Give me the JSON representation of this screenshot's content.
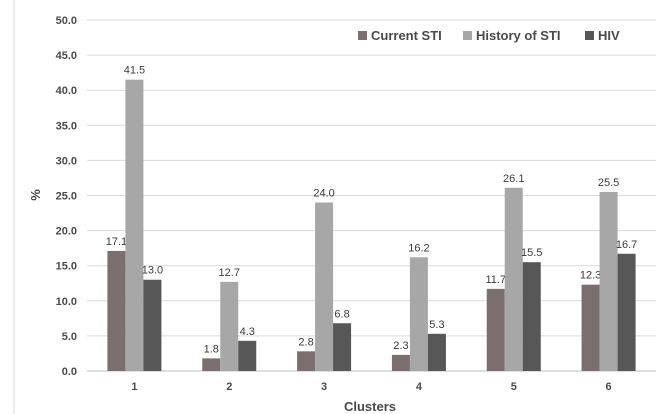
{
  "chart_data": {
    "type": "bar",
    "xlabel": "Clusters",
    "ylabel": "%",
    "ylim": [
      0,
      50
    ],
    "ytick_step": 5,
    "grid": true,
    "legend_position": "top-right",
    "categories": [
      "1",
      "2",
      "3",
      "4",
      "5",
      "6"
    ],
    "series": [
      {
        "name": "Current STI",
        "color": "#7b6e6e",
        "values": [
          17.1,
          1.8,
          2.8,
          2.3,
          11.7,
          12.3
        ]
      },
      {
        "name": "History of STI",
        "color": "#a7a7a7",
        "values": [
          41.5,
          12.7,
          24.0,
          16.2,
          26.1,
          25.5
        ]
      },
      {
        "name": "HIV",
        "color": "#575757",
        "values": [
          13.0,
          4.3,
          6.8,
          5.3,
          15.5,
          16.7
        ]
      }
    ]
  }
}
